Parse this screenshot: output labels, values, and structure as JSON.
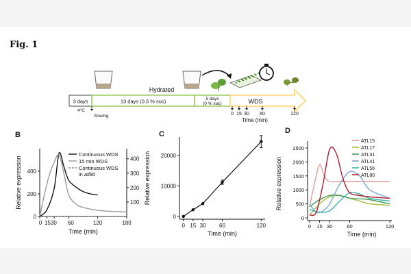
{
  "figure_label": "Fig. 1",
  "panelA": {
    "seg1": "3 days",
    "seg2": "13 days  (0.5 % suc)",
    "hydrated": "Hydrated",
    "seg3_l1": "5 days",
    "seg3_l2": "(0 % suc)",
    "wds": "WDS",
    "temp": "4°C",
    "sowing": "Sowing",
    "ticks": [
      "0",
      "15",
      "30",
      "60",
      "120"
    ],
    "time_label": "Time (min)",
    "colors": {
      "hydrated": "#8ac64a",
      "wds": "#ffd56a",
      "box": "#333333"
    }
  },
  "chart_data": [
    {
      "panel": "B",
      "type": "line",
      "xlabel": "Time (min)",
      "ylabel": "Relative expression",
      "x_ticks": [
        0,
        15,
        30,
        60,
        120,
        180
      ],
      "xlim": [
        0,
        180
      ],
      "y_left_ticks": [
        0,
        200,
        400
      ],
      "y_right_ticks": [
        100,
        200,
        300,
        400
      ],
      "series": [
        {
          "name": "Continuous WDS",
          "color": "#111111",
          "axis": "left",
          "x": [
            0,
            15,
            30,
            40,
            50,
            60,
            75,
            90,
            105,
            120
          ],
          "y": [
            0,
            60,
            250,
            560,
            440,
            320,
            260,
            220,
            200,
            190
          ]
        },
        {
          "name": "15 min WDS",
          "color": "#999999",
          "axis": "left",
          "x": [
            0,
            10,
            20,
            30,
            40,
            50,
            60,
            75,
            90,
            120,
            150,
            180
          ],
          "y": [
            0,
            200,
            370,
            480,
            545,
            380,
            190,
            110,
            80,
            55,
            45,
            40
          ]
        },
        {
          "name": "Continuous WDS in atl80",
          "name_italic": "atl80",
          "color": "#444444",
          "axis": "left",
          "dashed": true,
          "x": [
            0,
            180
          ],
          "y": [
            0,
            0
          ]
        }
      ]
    },
    {
      "panel": "C",
      "type": "line",
      "xlabel": "Time (min)",
      "ylabel": "Relative expression",
      "x": [
        0,
        15,
        30,
        60,
        120
      ],
      "y": [
        0,
        2200,
        4200,
        11200,
        24500
      ],
      "err": [
        0,
        0,
        0,
        700,
        2000
      ],
      "ylim": [
        0,
        26000
      ],
      "y_ticks": [
        0,
        10000,
        20000
      ]
    },
    {
      "panel": "D",
      "type": "line",
      "xlabel": "Time (min)",
      "ylabel": "Relative expression",
      "x_ticks": [
        0,
        15,
        30,
        60,
        120
      ],
      "ylim": [
        0,
        2500
      ],
      "y_ticks": [
        0,
        500,
        1000,
        1500,
        2000,
        2500
      ],
      "series": [
        {
          "name": "ATL15",
          "color": "#e39a9a",
          "x": [
            0,
            8,
            15,
            22,
            30,
            45,
            60,
            90,
            120
          ],
          "y": [
            400,
            1300,
            1900,
            1500,
            1300,
            1300,
            1300,
            1300,
            1300
          ]
        },
        {
          "name": "ATL17",
          "color": "#a3be3c",
          "x": [
            0,
            15,
            30,
            45,
            60,
            75,
            90,
            120
          ],
          "y": [
            100,
            500,
            750,
            800,
            700,
            600,
            500,
            450
          ]
        },
        {
          "name": "ATL31",
          "color": "#3e9b4e",
          "x": [
            0,
            15,
            30,
            45,
            60,
            75,
            90,
            120
          ],
          "y": [
            400,
            650,
            800,
            800,
            700,
            680,
            650,
            500
          ]
        },
        {
          "name": "ATL41",
          "color": "#7aa6d6",
          "x": [
            0,
            10,
            20,
            30,
            45,
            60,
            75,
            90,
            120
          ],
          "y": [
            500,
            200,
            250,
            500,
            1200,
            1650,
            1500,
            1000,
            700
          ]
        },
        {
          "name": "ATL56",
          "color": "#39b0ad",
          "x": [
            0,
            15,
            30,
            45,
            60,
            75,
            90,
            120
          ],
          "y": [
            300,
            200,
            250,
            600,
            900,
            850,
            700,
            600
          ]
        },
        {
          "name": "ATL80",
          "color": "#b2182b",
          "x": [
            0,
            10,
            20,
            30,
            40,
            50,
            60,
            75,
            90,
            120
          ],
          "y": [
            100,
            200,
            1200,
            2450,
            2300,
            1400,
            900,
            800,
            750,
            700
          ]
        }
      ]
    }
  ],
  "panel_labels": [
    "B",
    "C",
    "D"
  ]
}
